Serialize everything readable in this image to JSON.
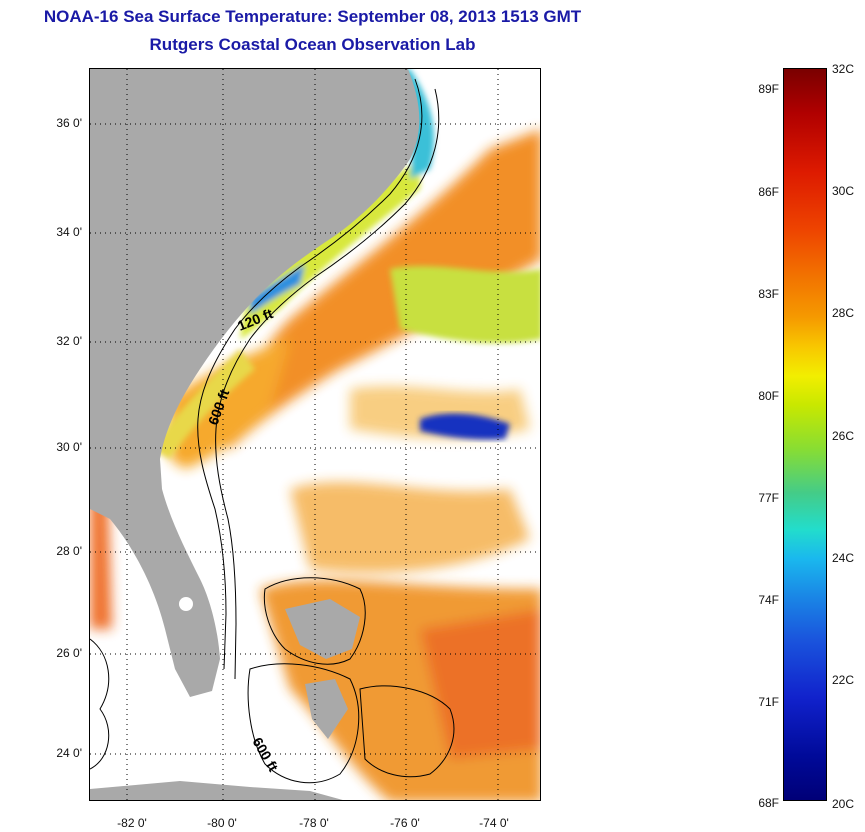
{
  "title": {
    "line1": "NOAA-16 Sea Surface Temperature:  September 08, 2013 1513 GMT",
    "line2": "Rutgers Coastal Ocean Observation Lab"
  },
  "map": {
    "latitude_labels": [
      "36 0'",
      "34 0'",
      "32 0'",
      "30 0'",
      "28 0'",
      "26 0'",
      "24 0'"
    ],
    "longitude_labels": [
      "-82 0'",
      "-80 0'",
      "-78 0'",
      "-76 0'",
      "-74 0'"
    ],
    "contour_labels": [
      "120 ft",
      "600 ft",
      "600 ft"
    ],
    "colors": {
      "land": "#a9a9a9",
      "cloud": "#ffffff",
      "warm_water": "#f08a1a",
      "shelf_water": "#d4e83a",
      "cool_water": "#1e88e5"
    }
  },
  "colorbar": {
    "fahrenheit_labels": [
      "89F",
      "86F",
      "83F",
      "80F",
      "77F",
      "74F",
      "71F",
      "68F"
    ],
    "celsius_labels": [
      "32C",
      "30C",
      "28C",
      "26C",
      "24C",
      "22C",
      "20C"
    ],
    "range_celsius": [
      20,
      32
    ],
    "range_fahrenheit": [
      68,
      89.6
    ]
  }
}
